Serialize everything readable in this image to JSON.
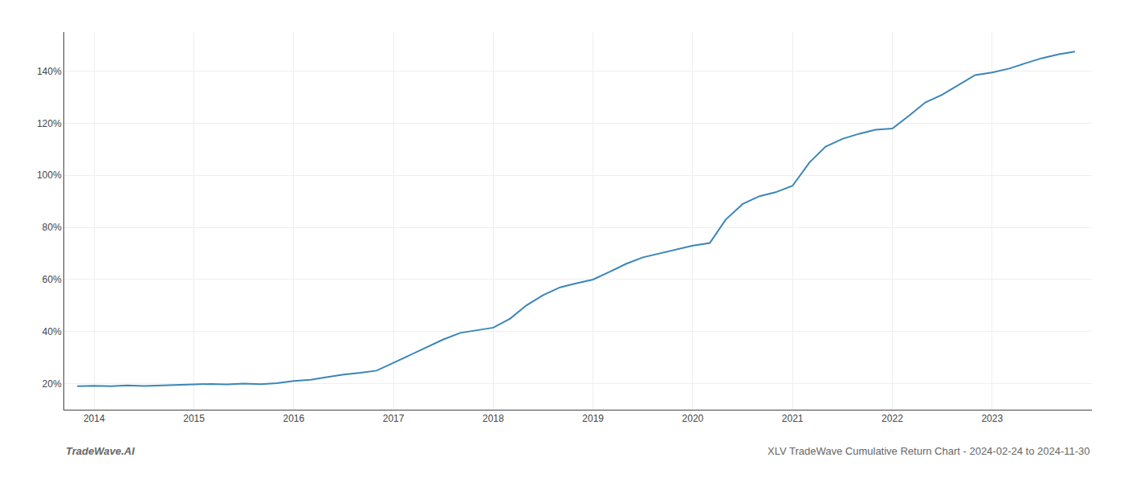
{
  "chart_data": {
    "type": "line",
    "title": "XLV TradeWave Cumulative Return Chart - 2024-02-24 to 2024-11-30",
    "annotations": [
      "TradeWave.AI"
    ],
    "x": [
      2013.83,
      2014.0,
      2014.17,
      2014.33,
      2014.5,
      2014.67,
      2014.83,
      2015.0,
      2015.17,
      2015.33,
      2015.5,
      2015.67,
      2015.83,
      2016.0,
      2016.17,
      2016.33,
      2016.5,
      2016.67,
      2016.83,
      2017.0,
      2017.17,
      2017.33,
      2017.5,
      2017.67,
      2017.83,
      2018.0,
      2018.17,
      2018.33,
      2018.5,
      2018.67,
      2018.83,
      2019.0,
      2019.17,
      2019.33,
      2019.5,
      2019.67,
      2019.83,
      2020.0,
      2020.17,
      2020.33,
      2020.5,
      2020.67,
      2020.83,
      2021.0,
      2021.17,
      2021.33,
      2021.5,
      2021.67,
      2021.83,
      2022.0,
      2022.17,
      2022.33,
      2022.5,
      2022.67,
      2022.83,
      2023.0,
      2023.17,
      2023.33,
      2023.5,
      2023.67,
      2023.83
    ],
    "values": [
      19.0,
      19.2,
      19.0,
      19.3,
      19.1,
      19.3,
      19.5,
      19.8,
      19.9,
      19.7,
      20.0,
      19.8,
      20.2,
      21.0,
      21.5,
      22.5,
      23.5,
      24.2,
      25.0,
      28.0,
      31.0,
      34.0,
      37.0,
      39.5,
      40.5,
      41.5,
      45.0,
      50.0,
      54.0,
      57.0,
      58.5,
      60.0,
      63.0,
      66.0,
      68.5,
      70.0,
      71.5,
      73.0,
      74.0,
      83.0,
      89.0,
      92.0,
      93.5,
      96.0,
      105.0,
      111.0,
      114.0,
      116.0,
      117.5,
      118.0,
      123.0,
      128.0,
      131.0,
      135.0,
      138.5,
      139.5,
      141.0,
      143.0,
      145.0,
      146.5,
      147.5
    ],
    "color": "#3a86b8",
    "xlim": [
      2013.7,
      2024.0
    ],
    "xticks": [
      2014,
      2015,
      2016,
      2017,
      2018,
      2019,
      2020,
      2021,
      2022,
      2023
    ],
    "ylim": [
      10,
      155
    ],
    "yticks": [
      {
        "value": 20,
        "label": "20%"
      },
      {
        "value": 40,
        "label": "40%"
      },
      {
        "value": 60,
        "label": "60%"
      },
      {
        "value": 80,
        "label": "80%"
      },
      {
        "value": 100,
        "label": "100%"
      },
      {
        "value": 120,
        "label": "120%"
      },
      {
        "value": 140,
        "label": "140%"
      }
    ],
    "grid": true
  }
}
